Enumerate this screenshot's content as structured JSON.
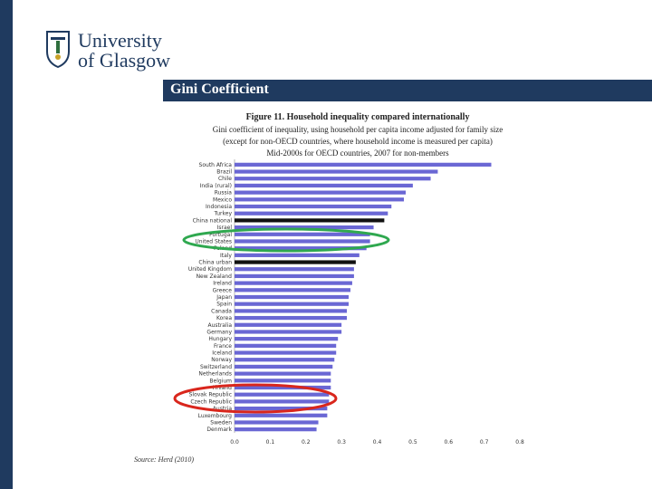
{
  "header": {
    "logo_line1": "University",
    "logo_line2": "of Glasgow",
    "slide_title": "Gini Coefficient"
  },
  "figure": {
    "title": "Figure 11. Household inequality compared internationally",
    "subtitle1": "Gini coefficient of inequality, using household per capita income adjusted for family size",
    "subtitle2": "(except for non-OECD countries, where household income is measured per capita)",
    "subtitle3": "Mid-2000s for OECD countries, 2007 for non-members",
    "source": "Source: Herd (2010)"
  },
  "colors": {
    "bar": "#6a67d4",
    "highlight_bar": "#111111",
    "green_ellipse": "#2fa84f",
    "red_ellipse": "#d9261c",
    "brand": "#1f3a5f"
  },
  "chart_data": {
    "type": "bar",
    "orientation": "horizontal",
    "title": "Gini Coefficient",
    "xlabel": "",
    "ylabel": "",
    "xlim": [
      0,
      0.8
    ],
    "xticks": [
      "0.0",
      "0.1",
      "0.2",
      "0.3",
      "0.4",
      "0.5",
      "0.6",
      "0.7",
      "0.8"
    ],
    "categories": [
      "South Africa",
      "Brazil",
      "Chile",
      "India (rural)",
      "Russia",
      "Mexico",
      "Indonesia",
      "Turkey",
      "China national",
      "Israel",
      "Portugal",
      "United States",
      "Poland",
      "Italy",
      "China urban",
      "United Kingdom",
      "New Zealand",
      "Ireland",
      "Greece",
      "Japan",
      "Spain",
      "Canada",
      "Korea",
      "Australia",
      "Germany",
      "Hungary",
      "France",
      "Iceland",
      "Norway",
      "Switzerland",
      "Netherlands",
      "Belgium",
      "Finland",
      "Slovak Republic",
      "Czech Republic",
      "Austria",
      "Luxembourg",
      "Sweden",
      "Denmark"
    ],
    "values": [
      0.72,
      0.57,
      0.55,
      0.5,
      0.48,
      0.475,
      0.44,
      0.43,
      0.42,
      0.39,
      0.38,
      0.38,
      0.37,
      0.35,
      0.34,
      0.335,
      0.335,
      0.33,
      0.325,
      0.32,
      0.32,
      0.315,
      0.315,
      0.3,
      0.3,
      0.29,
      0.285,
      0.285,
      0.28,
      0.275,
      0.27,
      0.27,
      0.27,
      0.265,
      0.265,
      0.26,
      0.26,
      0.235,
      0.23
    ],
    "highlighted": [
      "China national",
      "China urban"
    ]
  }
}
